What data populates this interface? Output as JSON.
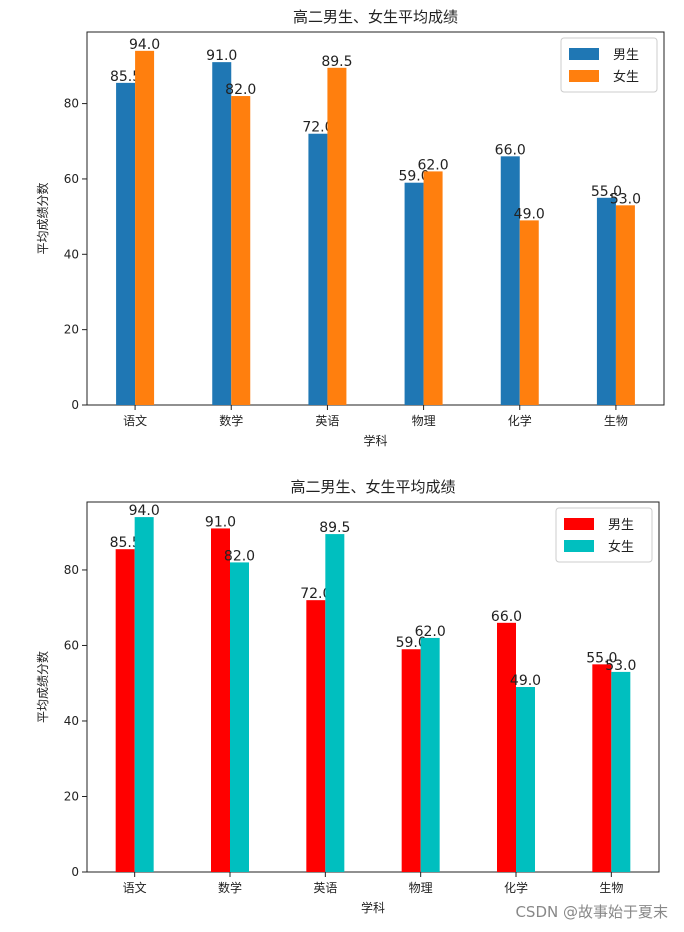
{
  "chart_data": [
    {
      "type": "bar",
      "title": "高二男生、女生平均成绩",
      "xlabel": "学科",
      "ylabel": "平均成绩分数",
      "categories": [
        "语文",
        "数学",
        "英语",
        "物理",
        "化学",
        "生物"
      ],
      "series": [
        {
          "name": "男生",
          "values": [
            85.5,
            91.0,
            72.0,
            59.0,
            66.0,
            55.0
          ],
          "color": "#1f77b4"
        },
        {
          "name": "女生",
          "values": [
            94.0,
            82.0,
            89.5,
            62.0,
            49.0,
            53.0
          ],
          "color": "#ff7f0e"
        }
      ],
      "value_labels": {
        "男生": [
          "85.5",
          "91.0",
          "72.0",
          "59.0",
          "66.0",
          "55.0"
        ],
        "女生": [
          "94.0",
          "82.0",
          "89.5",
          "62.0",
          "49.0",
          "53.0"
        ]
      },
      "ylim": [
        0,
        99
      ],
      "yticks": [
        0,
        20,
        40,
        60,
        80
      ],
      "legend": "top-right",
      "grid": false
    },
    {
      "type": "bar",
      "title": "高二男生、女生平均成绩",
      "xlabel": "学科",
      "ylabel": "平均成绩分数",
      "categories": [
        "语文",
        "数学",
        "英语",
        "物理",
        "化学",
        "生物"
      ],
      "series": [
        {
          "name": "男生",
          "values": [
            85.5,
            91.0,
            72.0,
            59.0,
            66.0,
            55.0
          ],
          "color": "#ff0000"
        },
        {
          "name": "女生",
          "values": [
            94.0,
            82.0,
            89.5,
            62.0,
            49.0,
            53.0
          ],
          "color": "#00bfbf"
        }
      ],
      "value_labels": {
        "男生": [
          "85.5",
          "91.0",
          "72.0",
          "59.0",
          "66.0",
          "55.0"
        ],
        "女生": [
          "94.0",
          "82.0",
          "89.5",
          "62.0",
          "49.0",
          "53.0"
        ]
      },
      "ylim": [
        0,
        98
      ],
      "yticks": [
        0,
        20,
        40,
        60,
        80
      ],
      "legend": "top-right",
      "grid": false
    }
  ],
  "watermark": "CSDN @故事始于夏末"
}
